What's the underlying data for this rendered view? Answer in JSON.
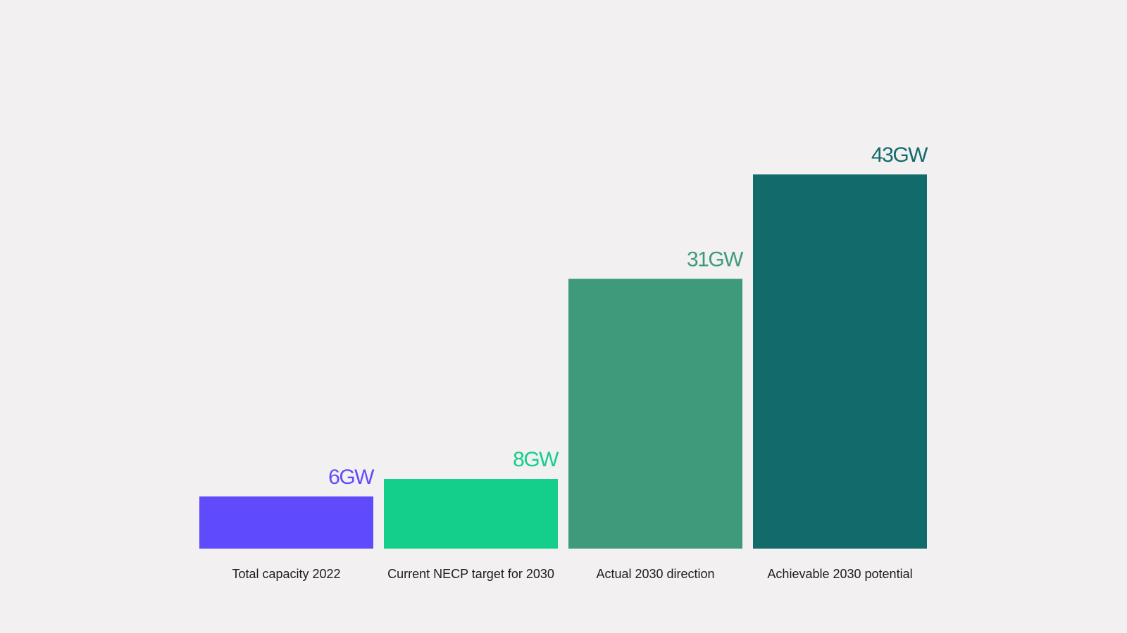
{
  "chart_data": {
    "type": "bar",
    "categories": [
      "Total capacity 2022",
      "Current NECP target for 2030",
      "Actual 2030 direction",
      "Achievable 2030 potential"
    ],
    "values": [
      6,
      8,
      31,
      43
    ],
    "value_labels": [
      "6GW",
      "8GW",
      "31GW",
      "43GW"
    ],
    "colors": [
      "#5f4bfb",
      "#14cf8b",
      "#3f9a7c",
      "#126a6a"
    ],
    "title": "",
    "xlabel": "",
    "ylabel": "",
    "ylim": [
      0,
      43
    ],
    "grid": false,
    "legend": "none"
  },
  "background_color": "#f2f0f1"
}
